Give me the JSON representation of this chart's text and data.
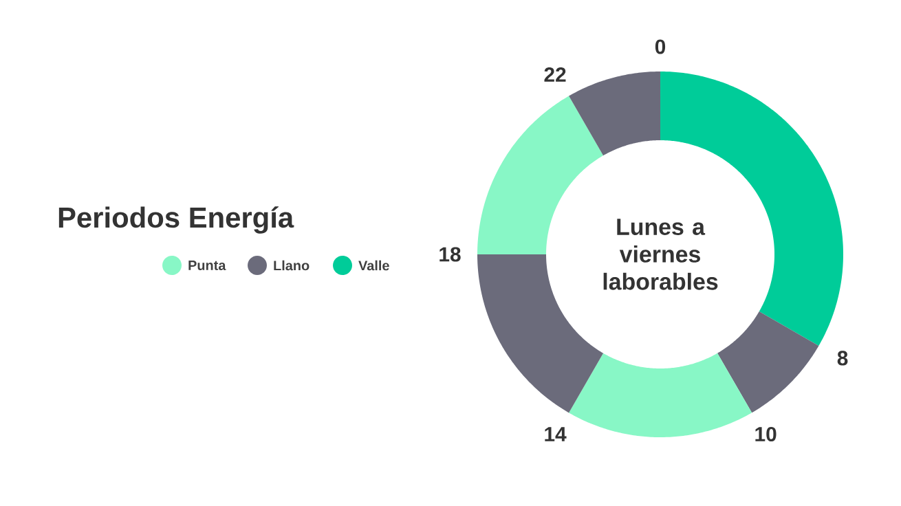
{
  "chart_data": {
    "type": "donut",
    "title": "Periodos Energía",
    "subtitle": "Lunes a viernes laborables",
    "categories": [
      "Valle",
      "Llano",
      "Punta",
      null,
      null,
      null
    ],
    "values": [
      33.33,
      8.33,
      16.67,
      16.67,
      16.67,
      8.33
    ],
    "colors": [
      "#00cc99",
      "#6b6b7b",
      "#88f7c6",
      "#6b6b7b",
      "#88f7c6",
      "#6b6b7b"
    ],
    "annotations": [
      "0",
      "8",
      "10",
      "14",
      "18",
      "22"
    ],
    "legend": "left"
  }
}
